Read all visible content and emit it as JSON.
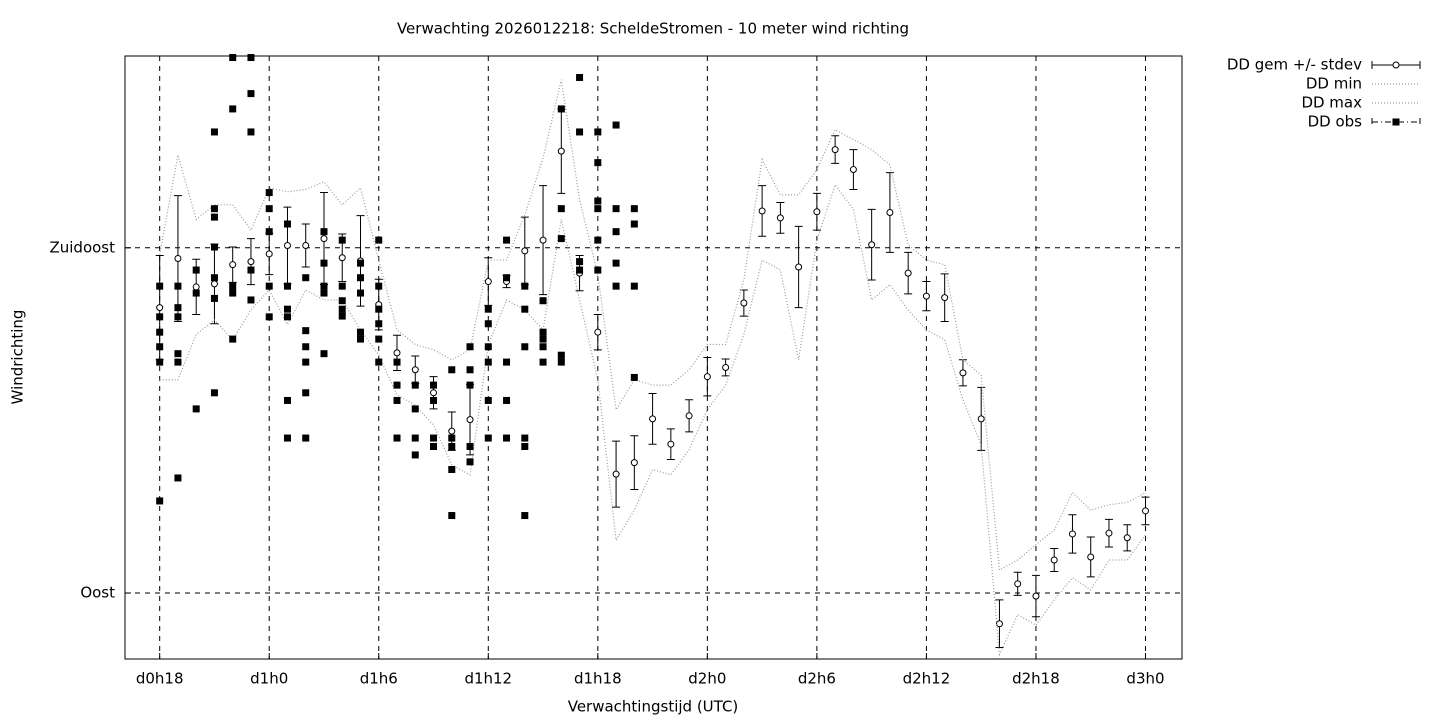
{
  "chart_data": {
    "type": "line",
    "title": "Verwachting 2026012218: ScheldeStromen - 10 meter wind richting",
    "x_label": "Verwachtingstijd (UTC)",
    "y_label": "Windrichting",
    "xlim": [
      16.1,
      74.0
    ],
    "ylim": [
      81.4,
      160
    ],
    "xticks": [
      {
        "value": 18,
        "label": "d0h18"
      },
      {
        "value": 24,
        "label": "d1h0"
      },
      {
        "value": 30,
        "label": "d1h6"
      },
      {
        "value": 36,
        "label": "d1h12"
      },
      {
        "value": 42,
        "label": "d1h18"
      },
      {
        "value": 48,
        "label": "d2h0"
      },
      {
        "value": 54,
        "label": "d2h6"
      },
      {
        "value": 60,
        "label": "d2h12"
      },
      {
        "value": 66,
        "label": "d2h18"
      },
      {
        "value": 72,
        "label": "d3h0"
      }
    ],
    "yticks": [
      {
        "value": 90,
        "label": "Oost"
      },
      {
        "value": 135,
        "label": "Zuidoost"
      }
    ],
    "grid": true,
    "legend": "outside-top-right",
    "series": [
      {
        "name": "DD gem +/- stdev",
        "type": "errorbar",
        "color": "#000000",
        "x": [
          18,
          19,
          20,
          21,
          22,
          23,
          24,
          25,
          26,
          27,
          28,
          29,
          30,
          31,
          32,
          33,
          34,
          35,
          36,
          37,
          38,
          39,
          40,
          41,
          42,
          43,
          44,
          45,
          46,
          47,
          48,
          49,
          50,
          51,
          52,
          53,
          54,
          55,
          56,
          57,
          58,
          59,
          60,
          61,
          62,
          63,
          64,
          65,
          66,
          67,
          68,
          69,
          70,
          71,
          72
        ],
        "values": [
          127.2,
          133.6,
          129.9,
          130.3,
          132.8,
          133.2,
          134.2,
          135.3,
          135.3,
          136.2,
          133.7,
          133.3,
          127.6,
          121.3,
          119.1,
          116.1,
          111.1,
          112.6,
          130.6,
          130.6,
          134.6,
          136.0,
          147.6,
          131.7,
          124.0,
          105.5,
          107.0,
          112.7,
          109.4,
          113.1,
          118.2,
          119.4,
          127.8,
          139.8,
          138.9,
          132.5,
          139.7,
          147.8,
          145.2,
          135.4,
          139.6,
          131.7,
          128.7,
          128.5,
          118.7,
          112.7,
          86.0,
          91.2,
          89.6,
          94.3,
          97.7,
          94.7,
          97.8,
          97.2,
          100.7
        ],
        "errors": [
          6.8,
          8.2,
          3.6,
          5.2,
          2.3,
          3.0,
          2.7,
          5.0,
          2.8,
          6.0,
          3.1,
          5.9,
          3.3,
          2.3,
          1.8,
          2.1,
          2.5,
          4.6,
          3.1,
          0.8,
          4.4,
          7.1,
          5.5,
          2.3,
          2.3,
          4.3,
          3.5,
          3.3,
          2.0,
          2.1,
          2.5,
          1.1,
          1.7,
          3.3,
          2.0,
          5.3,
          2.4,
          1.8,
          2.6,
          4.6,
          5.2,
          2.7,
          1.9,
          3.1,
          1.7,
          4.1,
          3.1,
          1.5,
          2.7,
          1.5,
          2.5,
          2.6,
          1.8,
          1.7,
          1.8
        ]
      },
      {
        "name": "DD min",
        "type": "line",
        "color": "#9a9a9a",
        "x": [
          18,
          19,
          20,
          21,
          22,
          23,
          24,
          25,
          26,
          27,
          28,
          29,
          30,
          31,
          32,
          33,
          34,
          35,
          36,
          37,
          38,
          39,
          40,
          41,
          42,
          43,
          44,
          45,
          46,
          47,
          48,
          49,
          50,
          51,
          52,
          53,
          54,
          55,
          56,
          57,
          58,
          59,
          60,
          61,
          62,
          63,
          64,
          65,
          66,
          67,
          68,
          69,
          70,
          71,
          72
        ],
        "values": [
          117.8,
          117.8,
          123.7,
          125.6,
          123.0,
          126.9,
          129.5,
          125.0,
          129.5,
          128.2,
          128.2,
          124.3,
          121.0,
          115.8,
          114.5,
          111.9,
          106.7,
          105.4,
          122.4,
          128.2,
          126.9,
          124.3,
          138.7,
          128.2,
          117.8,
          96.9,
          100.8,
          106.1,
          105.4,
          108.7,
          113.9,
          117.1,
          123.7,
          133.4,
          132.1,
          120.4,
          136.0,
          143.2,
          140.0,
          128.2,
          130.2,
          126.9,
          124.3,
          123.0,
          115.2,
          109.3,
          82.0,
          87.2,
          85.8,
          89.1,
          92.0,
          90.4,
          94.3,
          94.3,
          97.6
        ]
      },
      {
        "name": "DD max",
        "type": "line",
        "color": "#9a9a9a",
        "x": [
          18,
          19,
          20,
          21,
          22,
          23,
          24,
          25,
          26,
          27,
          28,
          29,
          30,
          31,
          32,
          33,
          34,
          35,
          36,
          37,
          38,
          39,
          40,
          41,
          42,
          43,
          44,
          45,
          46,
          47,
          48,
          49,
          50,
          51,
          52,
          53,
          54,
          55,
          56,
          57,
          58,
          59,
          60,
          61,
          62,
          63,
          64,
          65,
          66,
          67,
          68,
          69,
          70,
          71,
          72
        ],
        "values": [
          134.1,
          147.1,
          138.7,
          140.6,
          140.6,
          137.3,
          142.8,
          142.3,
          142.6,
          143.6,
          140.6,
          142.8,
          133.4,
          124.3,
          122.4,
          121.7,
          120.4,
          121.7,
          133.4,
          133.4,
          139.3,
          146.7,
          156.9,
          141.3,
          131.5,
          113.9,
          117.8,
          117.1,
          117.1,
          119.1,
          122.4,
          122.4,
          130.8,
          146.5,
          141.9,
          141.9,
          145.2,
          150.4,
          149.1,
          147.8,
          145.8,
          135.4,
          133.4,
          132.8,
          120.4,
          118.4,
          93.0,
          94.3,
          96.3,
          98.2,
          103.1,
          100.8,
          101.5,
          101.8,
          103.1
        ]
      },
      {
        "name": "DD obs",
        "type": "scatter",
        "color": "#000000",
        "x": [
          18,
          18,
          18,
          18,
          18,
          18,
          19,
          19,
          19,
          19,
          19,
          19,
          20,
          20,
          20,
          21,
          21,
          21,
          21,
          21,
          21,
          21,
          22,
          22,
          22,
          22,
          22,
          23,
          23,
          23,
          23,
          23,
          24,
          24,
          24,
          24,
          24,
          25,
          25,
          25,
          25,
          25,
          25,
          26,
          26,
          26,
          26,
          26,
          26,
          27,
          27,
          27,
          27,
          27,
          28,
          28,
          28,
          28,
          28,
          29,
          29,
          29,
          29,
          29,
          30,
          30,
          30,
          30,
          30,
          30,
          31,
          31,
          31,
          31,
          32,
          32,
          32,
          32,
          33,
          33,
          33,
          33,
          34,
          34,
          34,
          34,
          34,
          35,
          35,
          35,
          35,
          35,
          36,
          36,
          36,
          36,
          36,
          36,
          37,
          37,
          37,
          37,
          37,
          38,
          38,
          38,
          38,
          38,
          38,
          39,
          39,
          39,
          39,
          39,
          40,
          40,
          40,
          40,
          40,
          41,
          41,
          41,
          41,
          42,
          42,
          42,
          42,
          42,
          42,
          43,
          43,
          43,
          43,
          43,
          44,
          44,
          44,
          44
        ],
        "values": [
          130.0,
          126.0,
          124.0,
          122.1,
          120.1,
          102.0,
          130.0,
          127.2,
          126.0,
          121.2,
          120.1,
          105.0,
          132.1,
          129.1,
          114.0,
          150.1,
          140.1,
          139.0,
          135.1,
          131.1,
          128.4,
          116.1,
          159.8,
          153.1,
          130.0,
          129.1,
          123.1,
          159.8,
          155.1,
          150.1,
          132.1,
          128.2,
          142.2,
          140.1,
          137.1,
          130.0,
          126.0,
          138.1,
          130.0,
          127.0,
          126.0,
          115.1,
          110.2,
          131.1,
          124.2,
          122.1,
          120.1,
          116.1,
          110.2,
          137.1,
          133.0,
          130.0,
          129.1,
          121.2,
          136.0,
          130.0,
          128.1,
          127.0,
          126.1,
          133.0,
          131.1,
          129.1,
          124.0,
          123.1,
          136.0,
          130.0,
          127.0,
          125.1,
          123.1,
          120.1,
          120.1,
          117.1,
          115.1,
          110.2,
          117.1,
          114.0,
          110.2,
          108.0,
          117.1,
          115.1,
          110.2,
          109.1,
          119.1,
          110.2,
          109.1,
          106.1,
          100.1,
          122.1,
          119.1,
          117.1,
          109.1,
          107.1,
          127.0,
          125.1,
          122.1,
          120.1,
          115.1,
          110.2,
          136.0,
          131.1,
          120.1,
          115.1,
          110.2,
          130.0,
          127.0,
          122.1,
          110.2,
          109.1,
          100.1,
          128.1,
          124.0,
          123.1,
          122.1,
          120.1,
          153.1,
          140.1,
          136.2,
          121.0,
          120.1,
          157.2,
          150.1,
          133.2,
          132.1,
          150.1,
          146.1,
          141.1,
          140.1,
          136.0,
          132.1,
          151.0,
          140.1,
          137.1,
          133.0,
          130.0,
          140.1,
          138.1,
          130.0,
          118.1
        ]
      }
    ]
  }
}
